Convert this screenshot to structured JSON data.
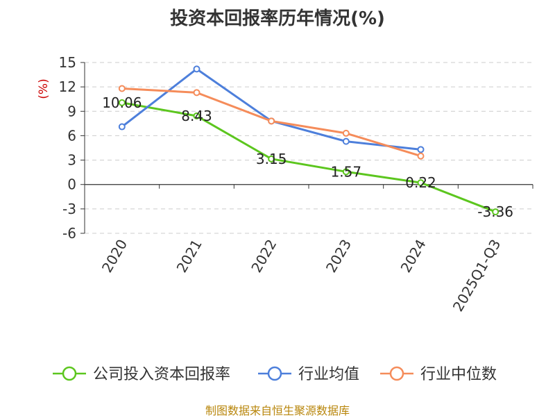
{
  "chart_data": {
    "type": "line",
    "title": "投资本回报率历年情况(%)",
    "ylabel": "(%)",
    "xlabel": "",
    "categories": [
      "2020",
      "2021",
      "2022",
      "2023",
      "2024",
      "2025Q1-Q3"
    ],
    "ylim": [
      -6,
      15
    ],
    "yticks": [
      15,
      12,
      9,
      6,
      3,
      0,
      -3,
      -6
    ],
    "grid": true,
    "legend_position": "bottom",
    "series": [
      {
        "name": "公司投入资本回报率",
        "color": "#5cc61e",
        "values": [
          10.06,
          8.43,
          3.15,
          1.57,
          0.22,
          -3.36
        ],
        "labels": [
          "10.06",
          "8.43",
          "3.15",
          "1.57",
          "0.22",
          "-3.36"
        ]
      },
      {
        "name": "行业均值",
        "color": "#4d7fdb",
        "values": [
          7.1,
          14.2,
          7.8,
          5.3,
          4.3,
          null
        ]
      },
      {
        "name": "行业中位数",
        "color": "#f58c5a",
        "values": [
          11.8,
          11.3,
          7.8,
          6.3,
          3.5,
          null
        ]
      }
    ]
  },
  "source": "制图数据来自恒生聚源数据库"
}
